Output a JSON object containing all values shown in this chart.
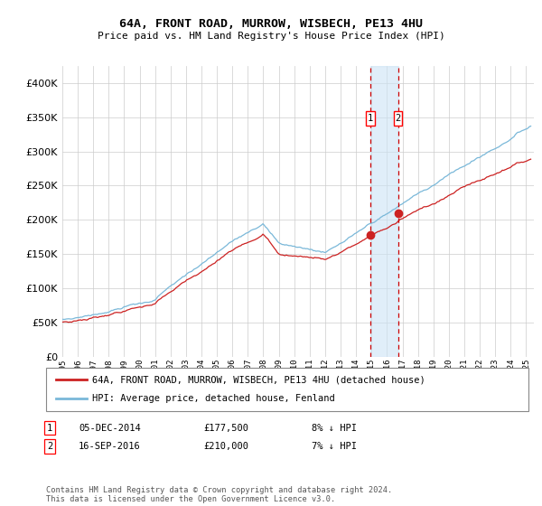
{
  "title": "64A, FRONT ROAD, MURROW, WISBECH, PE13 4HU",
  "subtitle": "Price paid vs. HM Land Registry's House Price Index (HPI)",
  "legend_line1": "64A, FRONT ROAD, MURROW, WISBECH, PE13 4HU (detached house)",
  "legend_line2": "HPI: Average price, detached house, Fenland",
  "footnote": "Contains HM Land Registry data © Crown copyright and database right 2024.\nThis data is licensed under the Open Government Licence v3.0.",
  "table": [
    {
      "num": "1",
      "date": "05-DEC-2014",
      "price": "£177,500",
      "hpi": "8% ↓ HPI"
    },
    {
      "num": "2",
      "date": "16-SEP-2016",
      "price": "£210,000",
      "hpi": "7% ↓ HPI"
    }
  ],
  "marker1_year": 2014.92,
  "marker2_year": 2016.71,
  "marker1_price": 177500,
  "marker2_price": 210000,
  "hpi_color": "#7ab8d9",
  "price_color": "#cc2222",
  "bg_color": "#ffffff",
  "grid_color": "#cccccc",
  "ylim_max": 425000,
  "xlim_start": 1995,
  "xlim_end": 2025.5
}
